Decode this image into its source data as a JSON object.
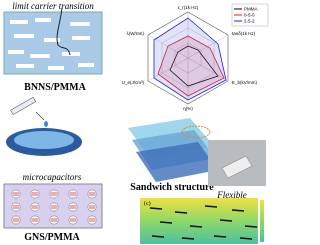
{
  "panels": {
    "top_left": {
      "caption": "limit carrier transition",
      "label": "BNNS/PMMA"
    },
    "bottom_left": {
      "caption": "microcapacitors",
      "label": "GNS/PMMA"
    },
    "center": {
      "label": "Sandwich structure"
    },
    "photo": {
      "label": "Flexible"
    },
    "map": {
      "label": "(c)"
    }
  },
  "radar": {
    "axes": [
      "ε_r(1k Hz)",
      "tanδ(1k Hz)",
      "E_b(kV/mm)",
      "η(%)",
      "U_e(J/cm³)",
      "λ(W/mK)"
    ],
    "legend": [
      "PMMA",
      "0-5-0",
      "2-5-2"
    ]
  }
}
